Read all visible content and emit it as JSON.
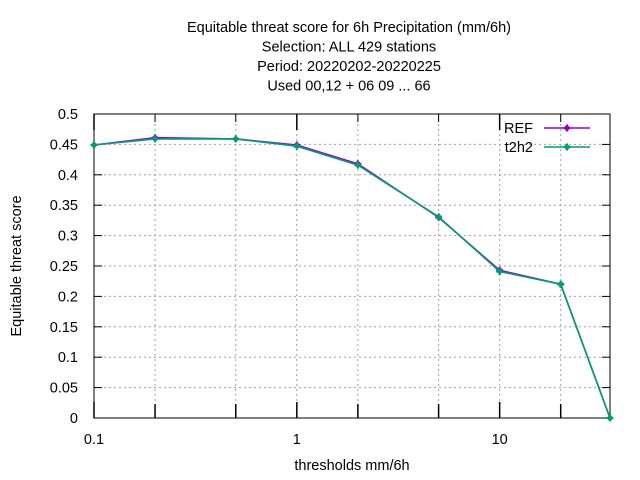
{
  "chart_data": {
    "type": "line",
    "title_lines": [
      "Equitable threat score  for 6h Precipitation (mm/6h)",
      "Selection: ALL     429 stations",
      "Period: 20220202-20220225",
      "Used  00,12  + 06 09 ... 66"
    ],
    "xlabel": "thresholds mm/6h",
    "ylabel": "Equitable threat score",
    "x_scale": "log",
    "xlim": [
      0.1,
      35
    ],
    "ylim": [
      0,
      0.5
    ],
    "x_ticks": [
      {
        "value": 0.1,
        "label": "0.1"
      },
      {
        "value": 1,
        "label": "1"
      },
      {
        "value": 10,
        "label": "10"
      }
    ],
    "x_minor_ticks": [
      0.2,
      0.5,
      2,
      5,
      20
    ],
    "y_ticks": [
      {
        "value": 0,
        "label": "0"
      },
      {
        "value": 0.05,
        "label": "0.05"
      },
      {
        "value": 0.1,
        "label": "0.1"
      },
      {
        "value": 0.15,
        "label": "0.15"
      },
      {
        "value": 0.2,
        "label": "0.2"
      },
      {
        "value": 0.25,
        "label": "0.25"
      },
      {
        "value": 0.3,
        "label": "0.3"
      },
      {
        "value": 0.35,
        "label": "0.35"
      },
      {
        "value": 0.4,
        "label": "0.4"
      },
      {
        "value": 0.45,
        "label": "0.45"
      },
      {
        "value": 0.5,
        "label": "0.5"
      }
    ],
    "grid": true,
    "legend_position": "top-right",
    "x": [
      0.1,
      0.2,
      0.5,
      1,
      2,
      5,
      10,
      20,
      35
    ],
    "series": [
      {
        "name": "REF",
        "color": "#9400d3",
        "values": [
          0.449,
          0.461,
          0.459,
          0.449,
          0.418,
          0.33,
          0.243,
          0.22,
          0.0
        ]
      },
      {
        "name": "t2h2",
        "color": "#009e73",
        "values": [
          0.449,
          0.459,
          0.459,
          0.447,
          0.416,
          0.331,
          0.241,
          0.22,
          0.0
        ]
      }
    ]
  }
}
